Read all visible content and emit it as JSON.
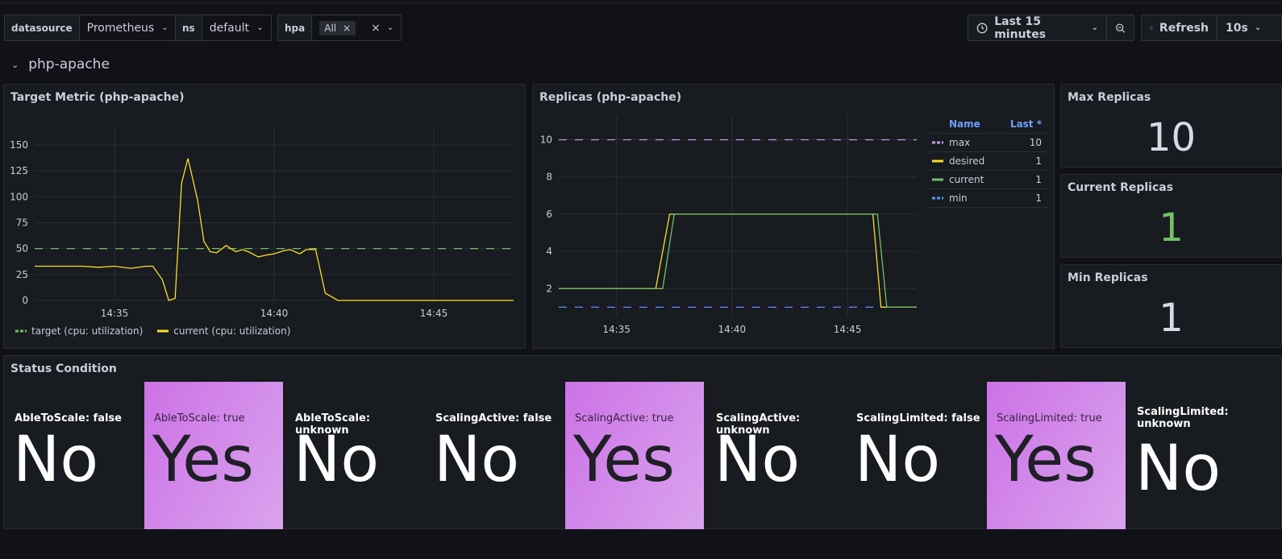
{
  "variables": [
    {
      "label": "datasource",
      "value": "Prometheus"
    },
    {
      "label": "ns",
      "value": "default"
    },
    {
      "label": "hpa",
      "value": "All"
    }
  ],
  "toolbar": {
    "time_range": "Last 15 minutes",
    "refresh_label": "Refresh",
    "refresh_interval": "10s"
  },
  "row": {
    "title": "php-apache"
  },
  "panels": {
    "target_metric": {
      "title": "Target Metric (php-apache)"
    },
    "replicas": {
      "title": "Replicas (php-apache)"
    },
    "max_replicas": {
      "title": "Max Replicas",
      "value": "10"
    },
    "current_replicas": {
      "title": "Current Replicas",
      "value": "1",
      "color": "#73bf69"
    },
    "min_replicas": {
      "title": "Min Replicas",
      "value": "1"
    },
    "status": {
      "title": "Status Condition"
    }
  },
  "replicas_legend": {
    "header_name": "Name",
    "header_last": "Last *",
    "rows": [
      {
        "name": "max",
        "last": "10",
        "color": "#ca95e5",
        "dash": true
      },
      {
        "name": "desired",
        "last": "1",
        "color": "#fade2a",
        "dash": false
      },
      {
        "name": "current",
        "last": "1",
        "color": "#73bf69",
        "dash": false
      },
      {
        "name": "min",
        "last": "1",
        "color": "#5794f2",
        "dash": true
      }
    ]
  },
  "status_conditions": [
    {
      "label": "AbleToScale: false",
      "value": "No",
      "active": false
    },
    {
      "label": "AbleToScale: true",
      "value": "Yes",
      "active": true
    },
    {
      "label": "AbleToScale: unknown",
      "value": "No",
      "active": false
    },
    {
      "label": "ScalingActive: false",
      "value": "No",
      "active": false
    },
    {
      "label": "ScalingActive: true",
      "value": "Yes",
      "active": true
    },
    {
      "label": "ScalingActive: unknown",
      "value": "No",
      "active": false
    },
    {
      "label": "ScalingLimited: false",
      "value": "No",
      "active": false
    },
    {
      "label": "ScalingLimited: true",
      "value": "Yes",
      "active": true
    },
    {
      "label": "ScalingLimited: unknown",
      "value": "No",
      "active": false
    }
  ],
  "chart_data": [
    {
      "type": "line",
      "title": "Target Metric (php-apache)",
      "x_ticks": [
        "14:35",
        "14:40",
        "14:45"
      ],
      "y_ticks": [
        0,
        25,
        50,
        75,
        100,
        125,
        150
      ],
      "ylim": [
        0,
        160
      ],
      "x_range_minutes": [
        32.5,
        47.5
      ],
      "series": [
        {
          "name": "target (cpu: utilization)",
          "color": "#73bf69",
          "dashed": true,
          "x": [
            32.5,
            47.5
          ],
          "y": [
            50,
            50
          ]
        },
        {
          "name": "current (cpu: utilization)",
          "color": "#fade2a",
          "dashed": false,
          "x": [
            32.5,
            33.5,
            34.0,
            34.5,
            35.0,
            35.5,
            36.0,
            36.2,
            36.5,
            36.7,
            36.9,
            37.1,
            37.3,
            37.6,
            37.8,
            38.0,
            38.2,
            38.5,
            38.8,
            39.0,
            39.2,
            39.5,
            39.8,
            40.0,
            40.3,
            40.5,
            40.8,
            41.0,
            41.3,
            41.6,
            42.0,
            43.0,
            44.0,
            45.0,
            46.0,
            47.5
          ],
          "y": [
            33,
            33,
            33,
            32,
            33,
            31,
            33,
            33,
            20,
            0,
            2,
            113,
            137,
            97,
            57,
            47,
            46,
            53,
            47,
            49,
            47,
            42,
            44,
            45,
            48,
            49,
            45,
            49,
            49,
            7,
            0,
            0,
            0,
            0,
            0,
            0
          ]
        }
      ]
    },
    {
      "type": "line",
      "title": "Replicas (php-apache)",
      "x_ticks": [
        "14:35",
        "14:40",
        "14:45"
      ],
      "y_ticks": [
        2,
        4,
        6,
        8,
        10
      ],
      "ylim": [
        0.5,
        10.8
      ],
      "x_range_minutes": [
        32.5,
        48.0
      ],
      "series": [
        {
          "name": "max",
          "color": "#ca95e5",
          "dashed": true,
          "x": [
            32.5,
            48.0
          ],
          "y": [
            10,
            10
          ]
        },
        {
          "name": "min",
          "color": "#5794f2",
          "dashed": true,
          "x": [
            32.5,
            48.0
          ],
          "y": [
            1,
            1
          ]
        },
        {
          "name": "desired",
          "color": "#fade2a",
          "dashed": false,
          "x": [
            32.5,
            36.7,
            37.3,
            46.1,
            46.45,
            48.0
          ],
          "y": [
            2,
            2,
            6,
            6,
            1,
            1
          ]
        },
        {
          "name": "current",
          "color": "#73bf69",
          "dashed": false,
          "x": [
            32.5,
            37.0,
            37.5,
            46.3,
            46.7,
            48.0
          ],
          "y": [
            2,
            2,
            6,
            6,
            1,
            1
          ]
        }
      ]
    }
  ]
}
